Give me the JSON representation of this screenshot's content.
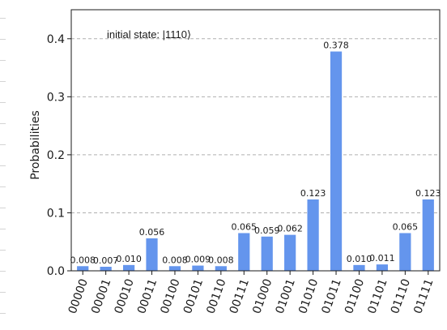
{
  "chart_data": {
    "type": "bar",
    "title": "",
    "xlabel": "",
    "ylabel": "Probabilities",
    "annotation": "initial state: |1110⟩",
    "ylim": [
      0,
      0.45
    ],
    "yticks": [
      "0.0",
      "0.1",
      "0.2",
      "0.3",
      "0.4"
    ],
    "grid": "horizontal dashed",
    "bar_color": "#6495ED",
    "categories": [
      "00000",
      "00001",
      "00010",
      "00011",
      "00100",
      "00101",
      "00110",
      "00111",
      "01000",
      "01001",
      "01010",
      "01011",
      "01100",
      "01101",
      "01110",
      "01111"
    ],
    "values": [
      0.008,
      0.007,
      0.01,
      0.056,
      0.008,
      0.009,
      0.008,
      0.065,
      0.059,
      0.062,
      0.123,
      0.378,
      0.01,
      0.011,
      0.065,
      0.123
    ],
    "data_labels": [
      "0.008",
      "0.007",
      "0.010",
      "0.056",
      "0.008",
      "0.009",
      "0.008",
      "0.065",
      "0.059",
      "0.062",
      "0.123",
      "0.378",
      "0.010",
      "0.011",
      "0.065",
      "0.123"
    ]
  }
}
